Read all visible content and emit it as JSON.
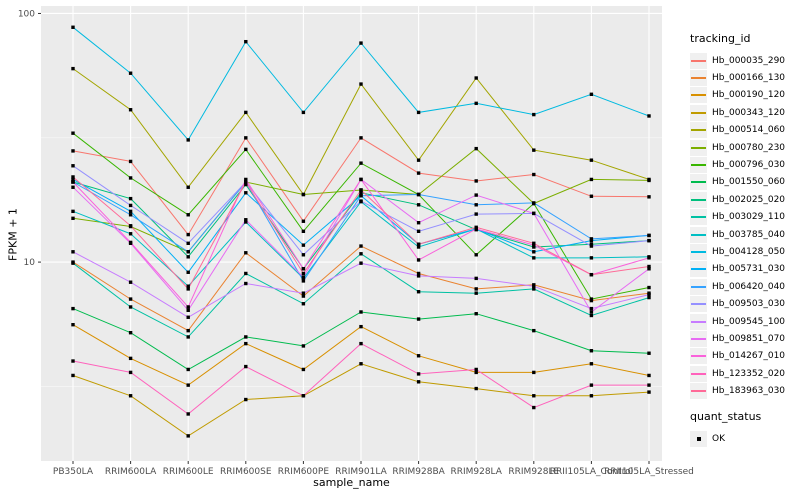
{
  "chart_data": {
    "type": "line",
    "xlabel": "sample_name",
    "ylabel": "FPKM + 1",
    "y_scale": "log10",
    "y_ticks": [
      100,
      10
    ],
    "y_minor": [
      31.62,
      3.162
    ],
    "ylim_log": [
      0.2,
      2.03
    ],
    "grid": "on",
    "legend_position": "right",
    "legend_title": "tracking_id",
    "quant_legend": {
      "title": "quant_status",
      "label": "OK"
    },
    "panel_color": "#EBEBEB",
    "grid_color": "#FFFFFF",
    "point_color": "#000000",
    "axis_text_color": "#4D4D4D",
    "categories": [
      "PB350LA",
      "RRIM600LA",
      "RRIM600LE",
      "RRIM600SE",
      "RRIM600PE",
      "RRIM901LA",
      "RRIM928BA",
      "RRIM928LA",
      "RRIM928LE",
      "RRII105LA_Control",
      "RRII105LA_Stressed"
    ],
    "series": [
      {
        "name": "Hb_000035_290",
        "color": "#F8766D",
        "values": [
          28,
          25.4,
          12.9,
          31.6,
          14.6,
          31.6,
          22.8,
          21.2,
          22.5,
          18.4,
          18.3
        ]
      },
      {
        "name": "Hb_000166_130",
        "color": "#EA8331",
        "values": [
          10,
          7.1,
          5.3,
          10.9,
          7.3,
          11.6,
          9.0,
          7.8,
          8.1,
          7.0,
          7.5
        ]
      },
      {
        "name": "Hb_000190_120",
        "color": "#D89000",
        "values": [
          5.6,
          4.1,
          3.2,
          4.7,
          3.7,
          5.5,
          4.2,
          3.6,
          3.6,
          3.9,
          3.5
        ]
      },
      {
        "name": "Hb_000343_120",
        "color": "#C09B00",
        "values": [
          3.5,
          2.9,
          2.0,
          2.8,
          2.9,
          3.9,
          3.3,
          3.1,
          2.9,
          2.9,
          3.0
        ]
      },
      {
        "name": "Hb_000514_060",
        "color": "#A3A500",
        "values": [
          60,
          41,
          20,
          40,
          18.7,
          52,
          25.7,
          55,
          28.2,
          25.7,
          21.5
        ]
      },
      {
        "name": "Hb_000780_230",
        "color": "#7CAE00",
        "values": [
          15,
          13.9,
          11,
          21,
          18.7,
          19.5,
          18.7,
          28.6,
          17.2,
          21.5,
          21.3
        ]
      },
      {
        "name": "Hb_000796_030",
        "color": "#39B600",
        "values": [
          33,
          21.8,
          15.5,
          28.4,
          13.3,
          25,
          18.7,
          10.7,
          17.2,
          7.1,
          7.9
        ]
      },
      {
        "name": "Hb_001550_060",
        "color": "#00BB4E",
        "values": [
          6.5,
          5.2,
          3.7,
          5.0,
          4.6,
          6.3,
          5.9,
          6.2,
          5.3,
          4.4,
          4.3
        ]
      },
      {
        "name": "Hb_002025_020",
        "color": "#00BF7D",
        "values": [
          21,
          18,
          10.5,
          20.5,
          9.4,
          19,
          17,
          13.5,
          11.5,
          11.8,
          12.2
        ]
      },
      {
        "name": "Hb_003029_110",
        "color": "#00C1A3",
        "values": [
          9.9,
          6.6,
          5.0,
          9.0,
          6.8,
          10.8,
          7.6,
          7.5,
          7.8,
          6.1,
          7.2
        ]
      },
      {
        "name": "Hb_003785_040",
        "color": "#00BFC4",
        "values": [
          16,
          13,
          8.0,
          14.5,
          8.6,
          17.5,
          11.5,
          13.6,
          10.4,
          10.4,
          10.5
        ]
      },
      {
        "name": "Hb_004128_050",
        "color": "#00BAE0",
        "values": [
          88,
          57.5,
          31,
          77,
          40,
          76,
          40,
          43.5,
          39.2,
          47.3,
          38.7
        ]
      },
      {
        "name": "Hb_005731_030",
        "color": "#00B0F6",
        "values": [
          21.5,
          16,
          9.1,
          19,
          11.7,
          18.5,
          11.8,
          13.6,
          11.0,
          12.2,
          12.8
        ]
      },
      {
        "name": "Hb_006420_040",
        "color": "#35A2FF",
        "values": [
          21,
          15.5,
          11,
          21,
          8.4,
          18.5,
          18.7,
          17,
          17.3,
          12.4,
          12.8
        ]
      },
      {
        "name": "Hb_009503_030",
        "color": "#9590FF",
        "values": [
          24.4,
          16.9,
          11.9,
          21,
          10.7,
          17.6,
          13.3,
          15.6,
          15.7,
          11.6,
          12.2
        ]
      },
      {
        "name": "Hb_009545_100",
        "color": "#C77CFF",
        "values": [
          11,
          8.3,
          6.0,
          8.2,
          7.5,
          9.9,
          8.8,
          8.6,
          8.0,
          6.5,
          7.4
        ]
      },
      {
        "name": "Hb_009851_070",
        "color": "#E76BF3",
        "values": [
          20,
          11.9,
          6.4,
          14.8,
          8.7,
          21.5,
          14.4,
          18.6,
          15.7,
          6.3,
          9.4
        ]
      },
      {
        "name": "Hb_014267_010",
        "color": "#FA62DB",
        "values": [
          21,
          12,
          6.6,
          21.5,
          9.4,
          21.5,
          10.2,
          13.6,
          11.7,
          8.9,
          10.4
        ]
      },
      {
        "name": "Hb_123352_020",
        "color": "#FF62BC",
        "values": [
          4.0,
          3.6,
          2.45,
          3.8,
          2.9,
          4.7,
          3.55,
          3.7,
          2.6,
          3.2,
          3.2
        ]
      },
      {
        "name": "Hb_183963_030",
        "color": "#FF6A98",
        "values": [
          22,
          14,
          7.8,
          21,
          9.0,
          19.5,
          11.8,
          13.8,
          11.9,
          8.9,
          9.6
        ]
      }
    ]
  }
}
